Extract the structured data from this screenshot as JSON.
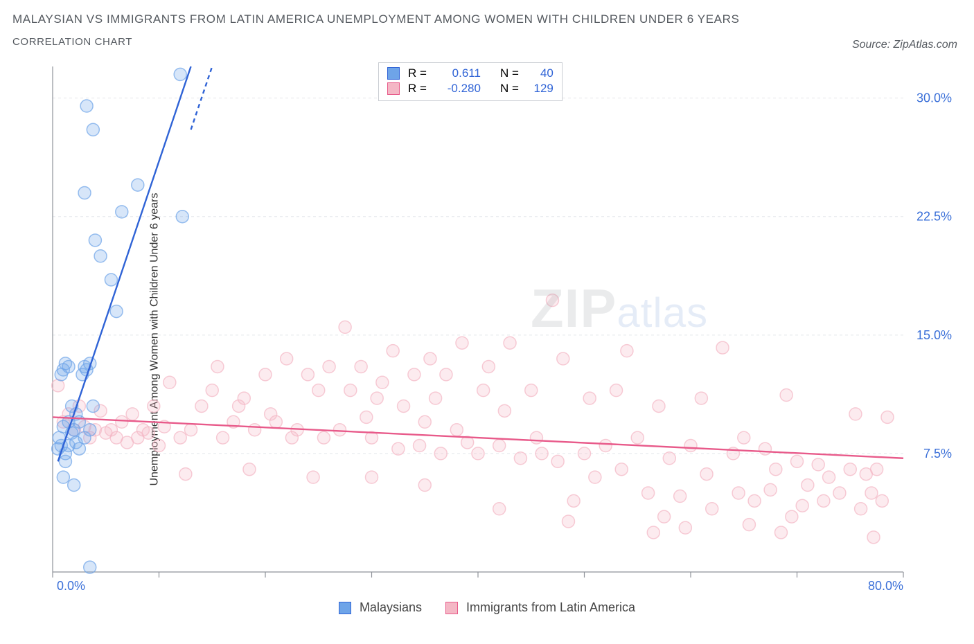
{
  "title_main": "MALAYSIAN VS IMMIGRANTS FROM LATIN AMERICA UNEMPLOYMENT AMONG WOMEN WITH CHILDREN UNDER 6 YEARS",
  "title_sub": "CORRELATION CHART",
  "source_label": "Source: ZipAtlas.com",
  "y_axis_label": "Unemployment Among Women with Children Under 6 years",
  "watermark_left": "ZIP",
  "watermark_right": "atlas",
  "chart": {
    "type": "scatter",
    "background_color": "#ffffff",
    "grid_color": "#e4e6ea",
    "axis_line_color": "#8e9299",
    "tick_label_color": "#3a6fd8",
    "xlim": [
      0,
      80
    ],
    "ylim": [
      0,
      32
    ],
    "y_ticks": [
      7.5,
      15.0,
      22.5,
      30.0
    ],
    "y_tick_labels": [
      "7.5%",
      "15.0%",
      "22.5%",
      "30.0%"
    ],
    "x_ticks": [
      0,
      10,
      20,
      30,
      40,
      50,
      60,
      70,
      80
    ],
    "x_tick_labels_visible": [
      "0.0%",
      "80.0%"
    ],
    "marker_radius": 9,
    "marker_fill_opacity": 0.28,
    "marker_stroke_opacity": 0.7,
    "line_width": 2.4,
    "series": [
      {
        "name": "Malaysians",
        "color": "#6ea4e8",
        "line_color": "#2f63d6",
        "R": "0.611",
        "N": "40",
        "trend": {
          "x1": 0.5,
          "y1": 7.0,
          "x2": 13.0,
          "y2": 32.0
        },
        "trend_dash_tail": {
          "x1": 13.0,
          "y1": 28.0,
          "x2": 15.0,
          "y2": 32.0
        },
        "points": [
          [
            0.5,
            7.8
          ],
          [
            0.6,
            8.5
          ],
          [
            0.8,
            8.0
          ],
          [
            1.0,
            9.2
          ],
          [
            1.2,
            7.5
          ],
          [
            1.5,
            8.0
          ],
          [
            1.8,
            8.8
          ],
          [
            2.0,
            9.0
          ],
          [
            2.2,
            10.0
          ],
          [
            2.5,
            9.5
          ],
          [
            2.8,
            12.5
          ],
          [
            3.0,
            13.0
          ],
          [
            3.2,
            12.8
          ],
          [
            3.5,
            13.2
          ],
          [
            3.8,
            10.5
          ],
          [
            1.0,
            6.0
          ],
          [
            1.2,
            7.0
          ],
          [
            1.5,
            13.0
          ],
          [
            0.8,
            12.5
          ],
          [
            1.0,
            12.8
          ],
          [
            1.2,
            13.2
          ],
          [
            2.0,
            5.5
          ],
          [
            3.5,
            0.3
          ],
          [
            4.0,
            21.0
          ],
          [
            4.5,
            20.0
          ],
          [
            5.5,
            18.5
          ],
          [
            6.0,
            16.5
          ],
          [
            3.0,
            24.0
          ],
          [
            3.2,
            29.5
          ],
          [
            6.5,
            22.8
          ],
          [
            8.0,
            24.5
          ],
          [
            12.0,
            31.5
          ],
          [
            12.2,
            22.5
          ],
          [
            3.8,
            28.0
          ],
          [
            1.5,
            9.5
          ],
          [
            1.8,
            10.5
          ],
          [
            2.2,
            8.2
          ],
          [
            2.5,
            7.8
          ],
          [
            3.0,
            8.5
          ],
          [
            3.5,
            9.0
          ]
        ]
      },
      {
        "name": "Immigrants from Latin America",
        "color": "#f4b7c5",
        "line_color": "#e85a8a",
        "R": "-0.280",
        "N": "129",
        "trend": {
          "x1": 0,
          "y1": 9.8,
          "x2": 80,
          "y2": 7.2
        },
        "points": [
          [
            0.5,
            11.8
          ],
          [
            1.0,
            9.5
          ],
          [
            1.5,
            10.0
          ],
          [
            2.0,
            9.0
          ],
          [
            2.5,
            10.5
          ],
          [
            3.0,
            9.2
          ],
          [
            3.5,
            8.5
          ],
          [
            4.0,
            9.0
          ],
          [
            4.5,
            10.2
          ],
          [
            5.0,
            8.8
          ],
          [
            5.5,
            9.0
          ],
          [
            6.0,
            8.5
          ],
          [
            6.5,
            9.5
          ],
          [
            7.0,
            8.2
          ],
          [
            7.5,
            10.0
          ],
          [
            8.0,
            8.5
          ],
          [
            8.5,
            9.0
          ],
          [
            9.0,
            8.8
          ],
          [
            9.5,
            10.5
          ],
          [
            10.0,
            8.0
          ],
          [
            10.5,
            9.2
          ],
          [
            11.0,
            12.0
          ],
          [
            12.0,
            8.5
          ],
          [
            13.0,
            9.0
          ],
          [
            14.0,
            10.5
          ],
          [
            15.0,
            11.5
          ],
          [
            15.5,
            13.0
          ],
          [
            16.0,
            8.5
          ],
          [
            17.0,
            9.5
          ],
          [
            17.5,
            10.5
          ],
          [
            18.0,
            11.0
          ],
          [
            19.0,
            9.0
          ],
          [
            20.0,
            12.5
          ],
          [
            20.5,
            10.0
          ],
          [
            21.0,
            9.5
          ],
          [
            22.0,
            13.5
          ],
          [
            22.5,
            8.5
          ],
          [
            23.0,
            9.0
          ],
          [
            24.0,
            12.5
          ],
          [
            25.0,
            11.5
          ],
          [
            25.5,
            8.5
          ],
          [
            26.0,
            13.0
          ],
          [
            27.0,
            9.0
          ],
          [
            27.5,
            15.5
          ],
          [
            28.0,
            11.5
          ],
          [
            29.0,
            13.0
          ],
          [
            29.5,
            9.8
          ],
          [
            30.0,
            8.5
          ],
          [
            30.5,
            11.0
          ],
          [
            31.0,
            12.0
          ],
          [
            32.0,
            14.0
          ],
          [
            32.5,
            7.8
          ],
          [
            33.0,
            10.5
          ],
          [
            34.0,
            12.5
          ],
          [
            34.5,
            8.0
          ],
          [
            35.0,
            9.5
          ],
          [
            35.5,
            13.5
          ],
          [
            36.0,
            11.0
          ],
          [
            36.5,
            7.5
          ],
          [
            37.0,
            12.5
          ],
          [
            38.0,
            9.0
          ],
          [
            38.5,
            14.5
          ],
          [
            39.0,
            8.2
          ],
          [
            40.0,
            7.5
          ],
          [
            40.5,
            11.5
          ],
          [
            41.0,
            13.0
          ],
          [
            42.0,
            8.0
          ],
          [
            42.5,
            10.2
          ],
          [
            43.0,
            14.5
          ],
          [
            44.0,
            7.2
          ],
          [
            45.0,
            11.5
          ],
          [
            45.5,
            8.5
          ],
          [
            46.0,
            7.5
          ],
          [
            47.0,
            17.2
          ],
          [
            47.5,
            7.0
          ],
          [
            48.0,
            13.5
          ],
          [
            49.0,
            4.5
          ],
          [
            50.0,
            7.5
          ],
          [
            50.5,
            11.0
          ],
          [
            51.0,
            6.0
          ],
          [
            52.0,
            8.0
          ],
          [
            53.0,
            11.5
          ],
          [
            53.5,
            6.5
          ],
          [
            54.0,
            14.0
          ],
          [
            55.0,
            8.5
          ],
          [
            56.0,
            5.0
          ],
          [
            57.0,
            10.5
          ],
          [
            57.5,
            3.5
          ],
          [
            58.0,
            7.2
          ],
          [
            59.0,
            4.8
          ],
          [
            60.0,
            8.0
          ],
          [
            61.0,
            11.0
          ],
          [
            61.5,
            6.2
          ],
          [
            62.0,
            4.0
          ],
          [
            63.0,
            14.2
          ],
          [
            64.0,
            7.5
          ],
          [
            64.5,
            5.0
          ],
          [
            65.0,
            8.5
          ],
          [
            65.5,
            3.0
          ],
          [
            66.0,
            4.5
          ],
          [
            67.0,
            7.8
          ],
          [
            67.5,
            5.2
          ],
          [
            68.0,
            6.5
          ],
          [
            69.0,
            11.2
          ],
          [
            69.5,
            3.5
          ],
          [
            70.0,
            7.0
          ],
          [
            70.5,
            4.2
          ],
          [
            71.0,
            5.5
          ],
          [
            72.0,
            6.8
          ],
          [
            72.5,
            4.5
          ],
          [
            73.0,
            6.0
          ],
          [
            74.0,
            5.0
          ],
          [
            75.0,
            6.5
          ],
          [
            75.5,
            10.0
          ],
          [
            76.0,
            4.0
          ],
          [
            76.5,
            6.2
          ],
          [
            77.0,
            5.0
          ],
          [
            77.5,
            6.5
          ],
          [
            78.0,
            4.5
          ],
          [
            78.5,
            9.8
          ],
          [
            77.2,
            2.2
          ],
          [
            68.5,
            2.5
          ],
          [
            59.5,
            2.8
          ],
          [
            56.5,
            2.5
          ],
          [
            48.5,
            3.2
          ],
          [
            42.0,
            4.0
          ],
          [
            35.0,
            5.5
          ],
          [
            30.0,
            6.0
          ],
          [
            24.5,
            6.0
          ],
          [
            18.5,
            6.5
          ],
          [
            12.5,
            6.2
          ]
        ]
      }
    ],
    "legend_top": {
      "R_label": "R =",
      "N_label": "N ="
    },
    "legend_bottom": {
      "items": [
        "Malaysians",
        "Immigrants from Latin America"
      ]
    }
  }
}
